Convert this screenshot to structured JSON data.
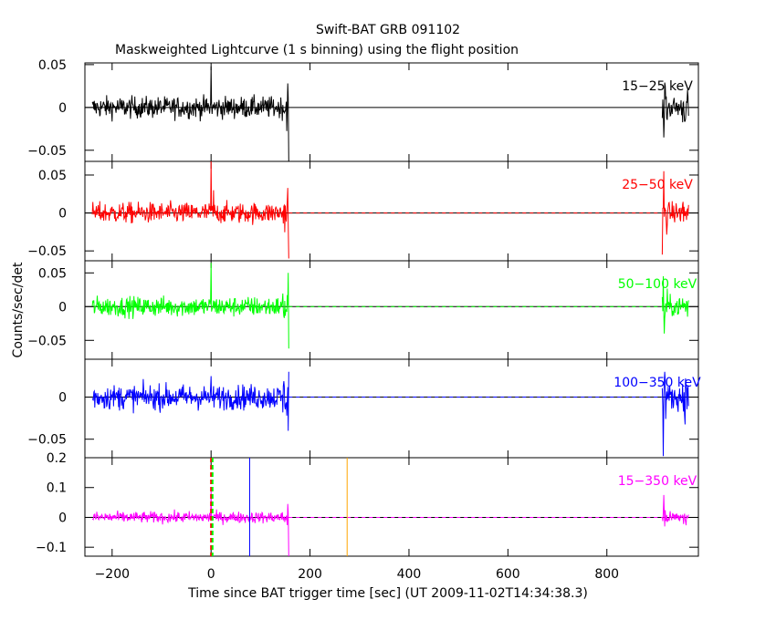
{
  "title": "Swift-BAT GRB 091102",
  "subtitle": "Maskweighted Lightcurve (1 s binning) using the flight position",
  "ylabel": "Counts/sec/det",
  "xlabel": "Time since BAT trigger time [sec] (UT 2009-11-02T14:34:38.3)",
  "chart_data": {
    "type": "line",
    "title": "Swift-BAT GRB 091102",
    "subtitle": "Maskweighted Lightcurve (1 s binning) using the flight position",
    "xlabel": "Time since BAT trigger time [sec] (UT 2009-11-02T14:34:38.3)",
    "ylabel": "Counts/sec/det",
    "xlim": [
      -255,
      985
    ],
    "x_ticks": [
      -200,
      0,
      200,
      400,
      600,
      800
    ],
    "x_tick_labels": [
      "−200",
      "0",
      "200",
      "400",
      "600",
      "800"
    ],
    "grid": false,
    "data_segments": [
      [
        -240,
        157
      ],
      [
        912,
        965
      ]
    ],
    "panels": [
      {
        "name": "15−25 keV",
        "color": "#000000",
        "ylim": [
          -0.063,
          0.052
        ],
        "y_ticks": [
          0.05,
          0,
          -0.05
        ],
        "y_tick_labels": [
          "0.05",
          "0",
          "−0.05"
        ],
        "noise_amplitude": 0.012,
        "features": [
          {
            "x": 0,
            "y": 0.048
          },
          {
            "x": 157,
            "y": -0.063
          },
          {
            "x": 155,
            "y": 0.028
          },
          {
            "x": 915,
            "y": -0.035
          },
          {
            "x": 918,
            "y": 0.025
          }
        ]
      },
      {
        "name": "25−50 keV",
        "color": "#ff0000",
        "ylim": [
          -0.063,
          0.068
        ],
        "y_ticks": [
          0.05,
          0,
          -0.05
        ],
        "y_tick_labels": [
          "0.05",
          "0",
          "−0.05"
        ],
        "noise_amplitude": 0.013,
        "features": [
          {
            "x": 0,
            "y": 0.068
          },
          {
            "x": 5,
            "y": 0.03
          },
          {
            "x": 157,
            "y": -0.06
          },
          {
            "x": 155,
            "y": 0.033
          },
          {
            "x": 912,
            "y": -0.055
          },
          {
            "x": 915,
            "y": 0.055
          }
        ]
      },
      {
        "name": "50−100 keV",
        "color": "#00ff00",
        "ylim": [
          -0.078,
          0.068
        ],
        "y_ticks": [
          0.05,
          0,
          -0.05
        ],
        "y_tick_labels": [
          "0.05",
          "0",
          "−0.05"
        ],
        "noise_amplitude": 0.014,
        "features": [
          {
            "x": 0,
            "y": 0.065
          },
          {
            "x": 157,
            "y": -0.062
          },
          {
            "x": 156,
            "y": 0.05
          },
          {
            "x": 914,
            "y": 0.045
          },
          {
            "x": 916,
            "y": -0.04
          }
        ]
      },
      {
        "name": "100−350 keV",
        "color": "#0000ff",
        "ylim": [
          -0.072,
          0.045
        ],
        "y_ticks": [
          0,
          -0.05
        ],
        "y_tick_labels": [
          "0",
          "−0.05"
        ],
        "noise_amplitude": 0.014,
        "features": [
          {
            "x": 0,
            "y": 0.025
          },
          {
            "x": 157,
            "y": 0.03
          },
          {
            "x": 156,
            "y": -0.04
          },
          {
            "x": 914,
            "y": -0.07
          },
          {
            "x": 917,
            "y": 0.03
          }
        ]
      },
      {
        "name": "15−350 keV",
        "color": "#ff00ff",
        "ylim": [
          -0.13,
          0.2
        ],
        "y_ticks": [
          0.2,
          0.1,
          0,
          -0.1
        ],
        "y_tick_labels": [
          "0.2",
          "0.1",
          "0",
          "−0.1"
        ],
        "noise_amplitude": 0.018,
        "features": [
          {
            "x": 0,
            "y": 0.09
          },
          {
            "x": 157,
            "y": -0.13
          },
          {
            "x": 155,
            "y": 0.045
          },
          {
            "x": 915,
            "y": 0.075
          },
          {
            "x": 917,
            "y": -0.03
          }
        ],
        "markers": [
          {
            "x": 0,
            "color": "#ff0000",
            "style": "dashed"
          },
          {
            "x": 3,
            "color": "#00ff00",
            "style": "dashed"
          },
          {
            "x": 78,
            "color": "#0000ff",
            "style": "solid"
          },
          {
            "x": 275,
            "color": "#ffa500",
            "style": "solid"
          }
        ]
      }
    ]
  }
}
